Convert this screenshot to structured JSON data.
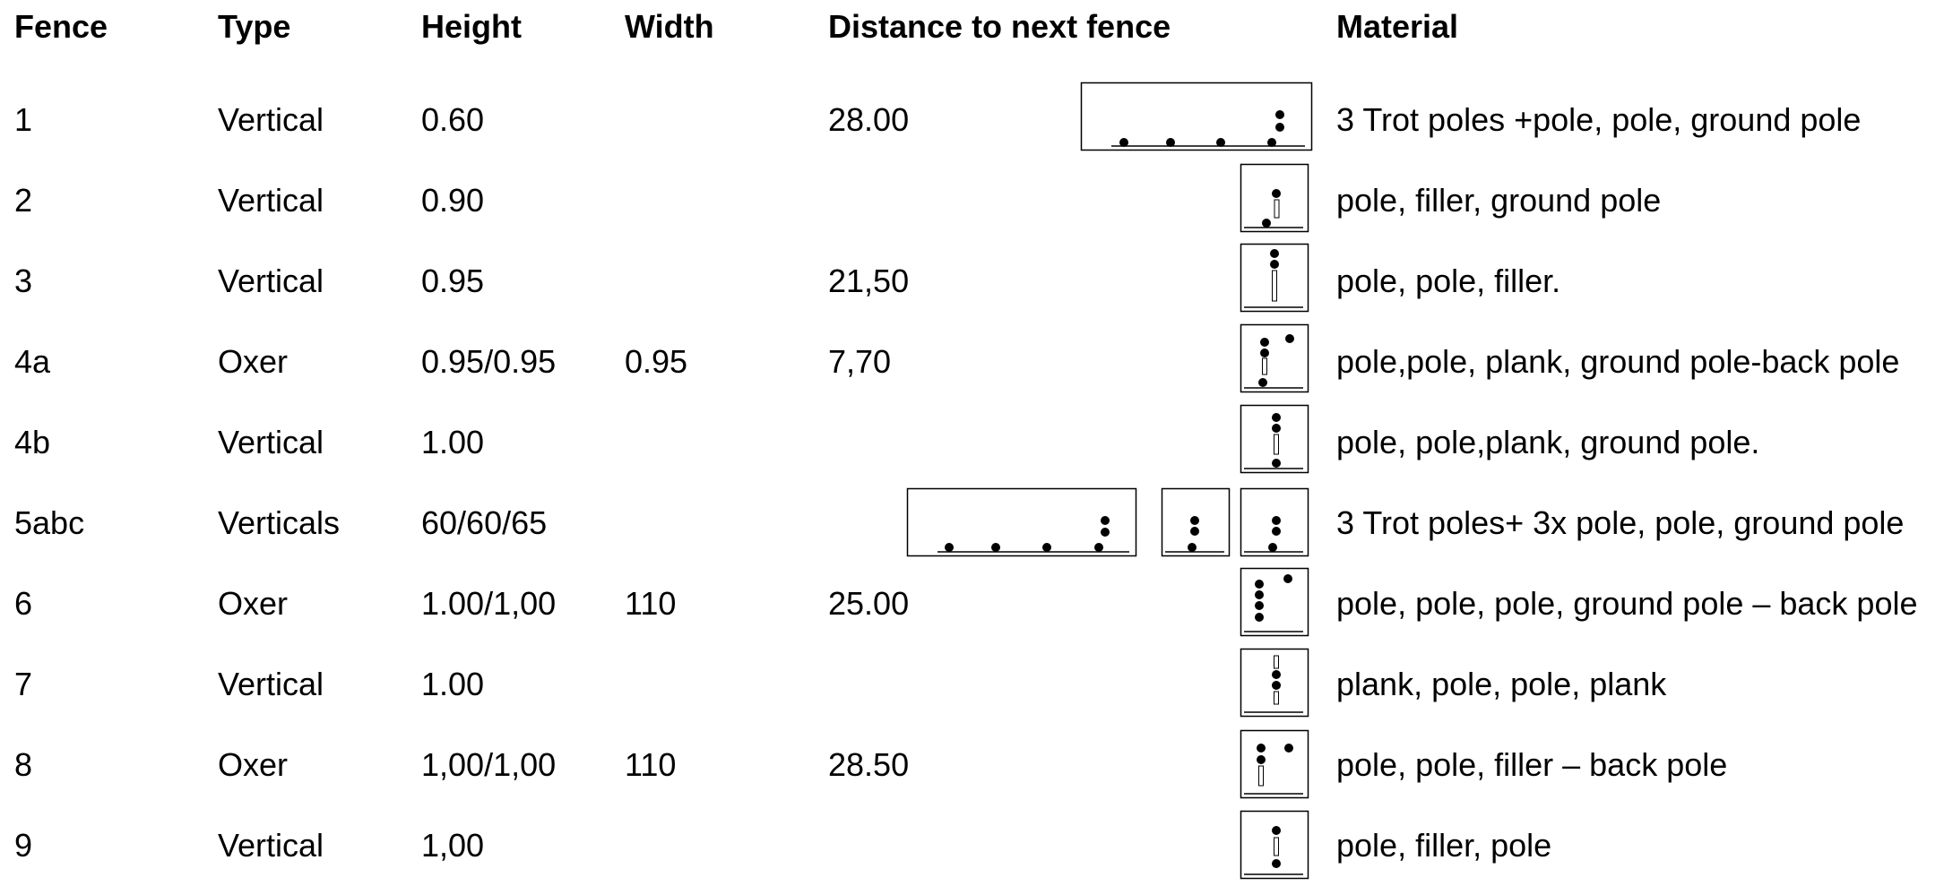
{
  "headers": {
    "fence": "Fence",
    "type": "Type",
    "height": "Height",
    "width": "Width",
    "distance": "Distance to next fence",
    "material": "Material"
  },
  "rows": [
    {
      "fence": "1",
      "type": "Vertical",
      "height": "0.60",
      "width": "",
      "distance": "28.00",
      "material": "3 Trot poles +pole, pole, ground pole"
    },
    {
      "fence": "2",
      "type": "Vertical",
      "height": "0.90",
      "width": "",
      "distance": "",
      "material": "pole, filler, ground pole"
    },
    {
      "fence": "3",
      "type": "Vertical",
      "height": "0.95",
      "width": "",
      "distance": "21,50",
      "material": "pole, pole, filler."
    },
    {
      "fence": "4a",
      "type": "Oxer",
      "height": "0.95/0.95",
      "width": "0.95",
      "distance": "7,70",
      "material": "pole,pole, plank, ground pole-back pole"
    },
    {
      "fence": "4b",
      "type": "Vertical",
      "height": "1.00",
      "width": "",
      "distance": "",
      "material": "pole, pole,plank, ground pole."
    },
    {
      "fence": "5abc",
      "type": "Verticals",
      "height": "60/60/65",
      "width": "",
      "distance": "",
      "material": "3 Trot poles+ 3x pole, pole, ground pole"
    },
    {
      "fence": "6",
      "type": "Oxer",
      "height": "1.00/1,00",
      "width": "110",
      "distance": "25.00",
      "material": "pole, pole, pole, ground pole – back pole"
    },
    {
      "fence": "7",
      "type": "Vertical",
      "height": "1.00",
      "width": "",
      "distance": "",
      "material": "plank, pole, pole, plank"
    },
    {
      "fence": "8",
      "type": "Oxer",
      "height": "1,00/1,00",
      "width": "110",
      "distance": "28.50",
      "material": "pole, pole, filler – back pole"
    },
    {
      "fence": "9",
      "type": "Vertical",
      "height": "1,00",
      "width": "",
      "distance": "",
      "material": "pole, filler, pole"
    }
  ]
}
